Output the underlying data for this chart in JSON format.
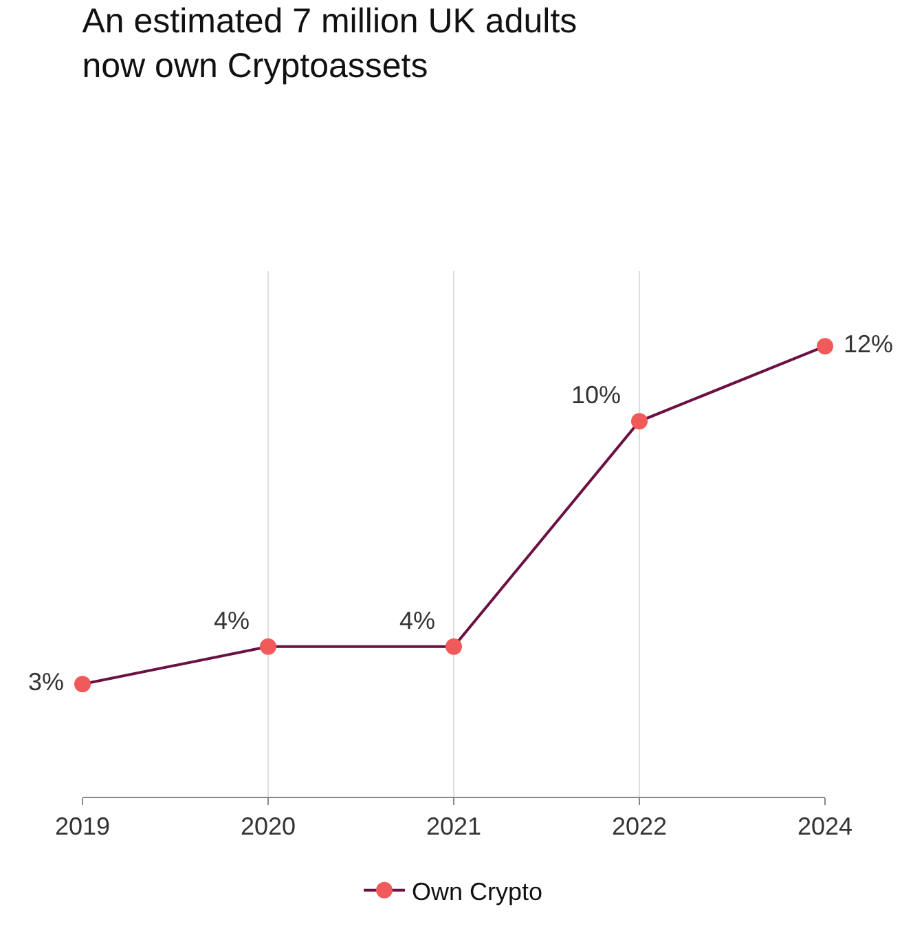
{
  "chart_data": {
    "type": "line",
    "title": "An estimated 7 million UK adults\nnow own Cryptoassets",
    "categories": [
      "2019",
      "2020",
      "2021",
      "2022",
      "2024"
    ],
    "series": [
      {
        "name": "Own Crypto",
        "color": "#6b1042",
        "colors": [
          "#f05a5a",
          "#f05a5a",
          "#f05a5a",
          "#f05a5a",
          "#f05a5a"
        ],
        "values": [
          3,
          4,
          4,
          10,
          12
        ],
        "value_labels": [
          "3%",
          "4%",
          "4%",
          "10%",
          "12%"
        ]
      }
    ],
    "ylim": [
      0,
      14
    ],
    "grid": "x",
    "legend": "bottom",
    "marker": "circle",
    "line_style": "solid"
  }
}
